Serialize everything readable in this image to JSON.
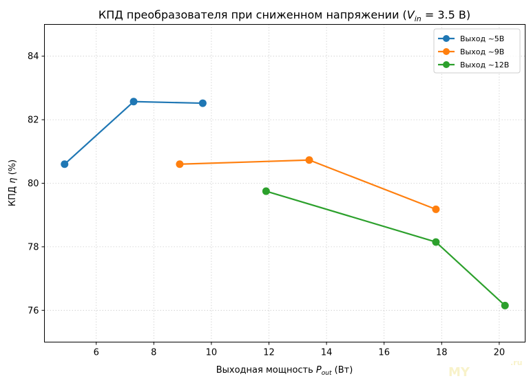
{
  "chart_data": {
    "type": "line",
    "title": "КПД преобразователя при сниженном напряжении (V_in = 3.5 В)",
    "title_parts": {
      "prefix": "КПД преобразователя при сниженном напряжении (",
      "var": "V",
      "sub": "in",
      "suffix": " = 3.5 В)"
    },
    "xlabel_parts": {
      "prefix": "Выходная мощность ",
      "var": "P",
      "sub": "out",
      "suffix": " (Вт)"
    },
    "ylabel_parts": {
      "prefix": "КПД ",
      "var": "η",
      "suffix": " (%)"
    },
    "xlim": [
      4.2,
      20.9
    ],
    "ylim": [
      75.0,
      85.0
    ],
    "xticks": [
      6,
      8,
      10,
      12,
      14,
      16,
      18,
      20
    ],
    "yticks": [
      76,
      78,
      80,
      82,
      84
    ],
    "grid": true,
    "legend_position": "top-right",
    "series": [
      {
        "name": "Выход ~5В",
        "color": "#1f77b4",
        "points": [
          [
            4.9,
            80.6
          ],
          [
            7.3,
            82.57
          ],
          [
            9.7,
            82.52
          ]
        ]
      },
      {
        "name": "Выход ~9В",
        "color": "#ff7f0e",
        "points": [
          [
            8.9,
            80.6
          ],
          [
            13.4,
            80.73
          ],
          [
            17.8,
            79.18
          ]
        ]
      },
      {
        "name": "Выход ~12В",
        "color": "#2ca02c",
        "points": [
          [
            11.9,
            79.75
          ],
          [
            17.8,
            78.15
          ],
          [
            20.2,
            76.15
          ]
        ]
      }
    ]
  },
  "watermark": {
    "text": "MY",
    "suffix": ".ru"
  }
}
